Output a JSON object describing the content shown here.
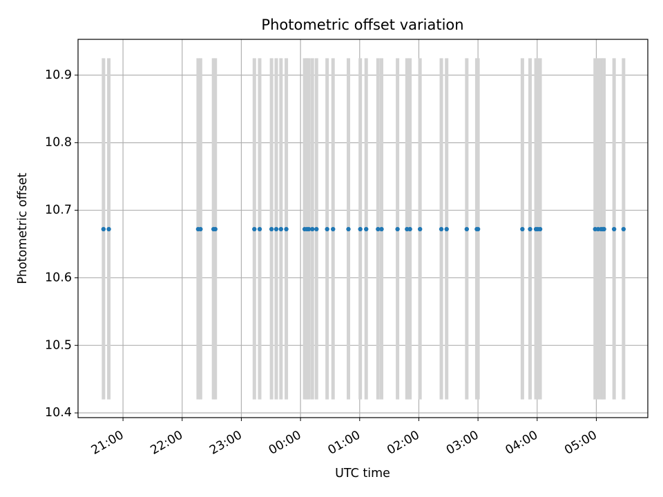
{
  "chart_data": {
    "type": "scatter",
    "title": "Photometric offset variation",
    "xlabel": "UTC time",
    "ylabel": "Photometric offset",
    "x_unit": "hours since 20:00 UTC",
    "xlim": [
      0.24,
      9.87
    ],
    "ylim": [
      10.393,
      10.953
    ],
    "x_ticks": [
      {
        "value": 1,
        "label": "21:00"
      },
      {
        "value": 2,
        "label": "22:00"
      },
      {
        "value": 3,
        "label": "23:00"
      },
      {
        "value": 4,
        "label": "00:00"
      },
      {
        "value": 5,
        "label": "01:00"
      },
      {
        "value": 6,
        "label": "02:00"
      },
      {
        "value": 7,
        "label": "03:00"
      },
      {
        "value": 8,
        "label": "04:00"
      },
      {
        "value": 9,
        "label": "05:00"
      }
    ],
    "y_ticks": [
      {
        "value": 10.4,
        "label": "10.4"
      },
      {
        "value": 10.5,
        "label": "10.5"
      },
      {
        "value": 10.6,
        "label": "10.6"
      },
      {
        "value": 10.7,
        "label": "10.7"
      },
      {
        "value": 10.8,
        "label": "10.8"
      },
      {
        "value": 10.9,
        "label": "10.9"
      }
    ],
    "grid": true,
    "series": [
      {
        "name": "offset",
        "color": "#1f77b4",
        "y": 10.672,
        "error_range": [
          10.42,
          10.925
        ],
        "error_color": "#d3d3d3",
        "x": [
          0.67,
          0.76,
          2.27,
          2.31,
          2.53,
          2.56,
          3.22,
          3.31,
          3.51,
          3.59,
          3.67,
          3.76,
          4.07,
          4.11,
          4.14,
          4.2,
          4.27,
          4.45,
          4.55,
          4.81,
          5.01,
          5.11,
          5.31,
          5.37,
          5.64,
          5.8,
          5.85,
          6.02,
          6.38,
          6.47,
          6.81,
          6.98,
          7.0,
          7.75,
          7.88,
          7.98,
          8.01,
          8.05,
          8.98,
          9.03,
          9.08,
          9.11,
          9.13,
          9.3,
          9.46
        ]
      }
    ]
  }
}
